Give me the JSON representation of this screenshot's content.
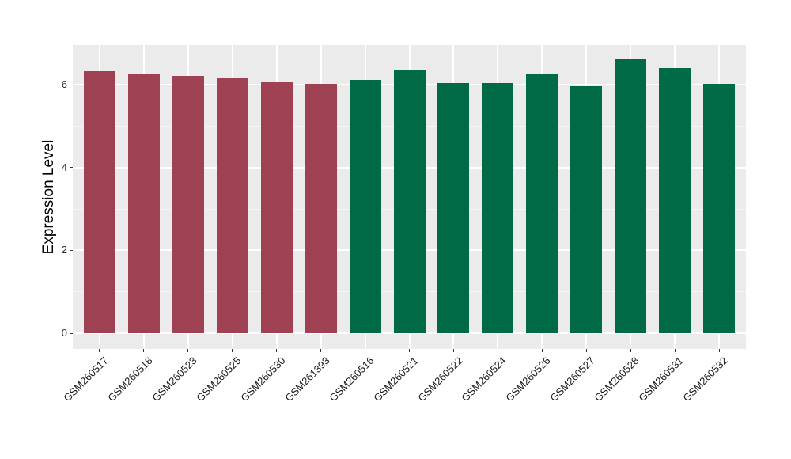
{
  "chart_data": {
    "type": "bar",
    "title": "",
    "xlabel": "",
    "ylabel": "Expression Level",
    "categories": [
      "GSM260517",
      "GSM260518",
      "GSM260523",
      "GSM260525",
      "GSM260530",
      "GSM261393",
      "GSM260516",
      "GSM260521",
      "GSM260522",
      "GSM260524",
      "GSM260526",
      "GSM260527",
      "GSM260528",
      "GSM260531",
      "GSM260532"
    ],
    "values": [
      6.32,
      6.25,
      6.22,
      6.18,
      6.06,
      6.03,
      6.12,
      6.36,
      6.04,
      6.05,
      6.25,
      5.97,
      6.64,
      6.41,
      6.03
    ],
    "bar_colors": [
      "#9E4253",
      "#9E4253",
      "#9E4253",
      "#9E4253",
      "#9E4253",
      "#9E4253",
      "#006946",
      "#006946",
      "#006946",
      "#006946",
      "#006946",
      "#006946",
      "#006946",
      "#006946",
      "#006946"
    ],
    "group_colors": {
      "first_group": "#9E4253",
      "second_group": "#006946"
    },
    "yticks": [
      0,
      2,
      4,
      6
    ],
    "yticks_minor": [
      1,
      3,
      5
    ],
    "ylim": [
      -0.37,
      6.97
    ],
    "grid": "on",
    "legend": "none",
    "panel_background": "#EBEBEB",
    "gridline_color": "#FFFFFF",
    "tick_color": "#333333"
  }
}
